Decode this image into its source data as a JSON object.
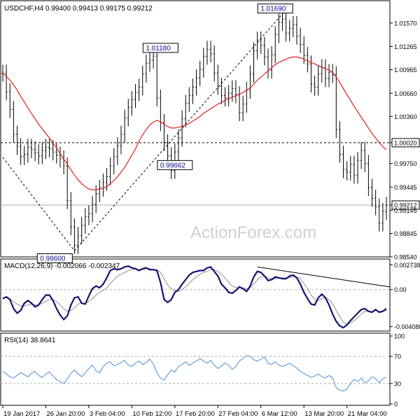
{
  "chart_data": [
    {
      "type": "line",
      "panel": "price",
      "title": "USDCHF,H4  0.99400 0.99413 0.99175 0.99212",
      "symbol": "USDCHF,H4",
      "ohlc_header": "0.99400 0.99413 0.99175 0.99212",
      "watermark": "ActionForex.com",
      "ylim": [
        0.9855,
        1.0185
      ],
      "y_ticks": [
        "1.01570",
        "1.01265",
        "1.00965",
        "1.00660",
        "1.00360",
        "1.00020",
        "0.99750",
        "0.99445",
        "0.99212",
        "0.99145",
        "0.98845",
        "0.98540"
      ],
      "last_price": "0.99212",
      "horizontal_lines": [
        {
          "value": 1.0002,
          "label": "1.00020",
          "style": "dashed"
        }
      ],
      "annotations": [
        {
          "label": "1.01690",
          "x": 76,
          "y": 1.0169
        },
        {
          "label": "1.01180",
          "x": 44,
          "y": 1.0118
        },
        {
          "label": "0.99662",
          "x": 48,
          "y": 0.99662
        },
        {
          "label": "0.98600",
          "x": 19,
          "y": 0.986
        }
      ],
      "trend_lines": [
        {
          "from": [
            0,
            0.9983
          ],
          "to": [
            20,
            0.9862
          ],
          "style": "dashed"
        },
        {
          "from": [
            20,
            0.9862
          ],
          "to": [
            79,
            1.0174
          ],
          "style": "dashed"
        }
      ],
      "series": [
        {
          "name": "",
          "color": "#000000",
          "values": [
            1.0092,
            1.0068,
            1.0045,
            1.0013,
            0.9997,
            0.9984,
            0.9987,
            0.9996,
            0.9993,
            0.9989,
            0.9985,
            0.9992,
            0.9996,
            0.9994,
            0.999,
            0.9986,
            0.9981,
            0.9972,
            0.9927,
            0.9893,
            0.9869,
            0.9882,
            0.9895,
            0.9906,
            0.991,
            0.9922,
            0.9936,
            0.9943,
            0.9951,
            0.9958,
            0.9972,
            0.9984,
            0.9998,
            1.0013,
            1.0034,
            1.0048,
            1.0058,
            1.0067,
            1.0074,
            1.0091,
            1.0105,
            1.0109,
            1.0114,
            1.006,
            1.0028,
            1.0002,
            0.9985,
            0.9966,
            0.999,
            1.0008,
            1.0033,
            1.0053,
            1.0063,
            1.0074,
            1.0086,
            1.0097,
            1.0114,
            1.0123,
            1.0117,
            1.0092,
            1.0075,
            1.0063,
            1.006,
            1.0066,
            1.0072,
            1.0064,
            1.0041,
            1.0052,
            1.007,
            1.0091,
            1.0121,
            1.0135,
            1.0128,
            1.0113,
            1.0096,
            1.0116,
            1.0142,
            1.0158,
            1.0162,
            1.0144,
            1.015,
            1.0155,
            1.014,
            1.0129,
            1.0115,
            1.0104,
            1.0078,
            1.0074,
            1.0091,
            1.0099,
            1.0085,
            1.0093,
            1.009,
            1.0019,
            0.9987,
            0.9967,
            0.9964,
            0.9974,
            0.996,
            0.9979,
            0.9992,
            0.9975,
            0.9944,
            0.993,
            0.9919,
            0.9898,
            0.9913,
            0.9921
          ]
        },
        {
          "name": "",
          "color": "#e02020",
          "values": [
            1.0092,
            1.0088,
            1.0083,
            1.0077,
            1.007,
            1.0062,
            1.0055,
            1.0047,
            1.004,
            1.0033,
            1.0026,
            1.002,
            1.0014,
            1.0008,
            1.0002,
            0.9995,
            0.9988,
            0.9981,
            0.9974,
            0.9967,
            0.996,
            0.9954,
            0.9949,
            0.9945,
            0.9942,
            0.9941,
            0.9941,
            0.9942,
            0.9943,
            0.9945,
            0.9949,
            0.9953,
            0.9958,
            0.9964,
            0.997,
            0.9978,
            0.9986,
            0.9994,
            1.0004,
            1.0012,
            1.0019,
            1.0025,
            1.0029,
            1.0031,
            1.0029,
            1.0026,
            1.0023,
            1.0021,
            1.0021,
            1.0022,
            1.0023,
            1.0025,
            1.0027,
            1.003,
            1.0033,
            1.0036,
            1.004,
            1.0043,
            1.0046,
            1.0049,
            1.0052,
            1.0054,
            1.0057,
            1.0059,
            1.0061,
            1.0063,
            1.0065,
            1.0067,
            1.007,
            1.0073,
            1.0078,
            1.0083,
            1.0087,
            1.0091,
            1.0095,
            1.0099,
            1.0103,
            1.0106,
            1.0108,
            1.011,
            1.0112,
            1.0113,
            1.0113,
            1.0112,
            1.011,
            1.0108,
            1.0106,
            1.0104,
            1.0102,
            1.01,
            1.0098,
            1.0096,
            1.0093,
            1.0087,
            1.008,
            1.0072,
            1.0064,
            1.0057,
            1.0049,
            1.0042,
            1.0035,
            1.0028,
            1.0021,
            1.0014,
            1.0008,
            1.0002,
            0.9997,
            0.9993
          ]
        }
      ],
      "x_tick_labels": [
        "19 Jan 2017",
        "26 Jan 20:00",
        "3 Feb 04:00",
        "10 Feb 12:00",
        "17 Feb 20:00",
        "27 Feb 04:00",
        "6 Mar 12:00",
        "13 Mar 20:00",
        "21 Mar 04:00"
      ],
      "x_tick_index": [
        0,
        12,
        24,
        36,
        48,
        60,
        72,
        84,
        96
      ]
    },
    {
      "type": "line",
      "panel": "macd",
      "title": "MACD(12,26,9) -0.002066 -0.002347",
      "ylim": [
        -0.0045,
        0.0033
      ],
      "y_ticks": [
        {
          "value": 0.002738,
          "label": "0.002738"
        },
        {
          "value": 0.0,
          "label": "0.00"
        },
        {
          "value": -0.004088,
          "label": "-0.004088"
        }
      ],
      "zero_line": true,
      "trend_lines": [
        {
          "from": [
            71,
            0.0025
          ],
          "to": [
            108,
            0.0003
          ]
        }
      ],
      "series": [
        {
          "name": "",
          "color": "#14146e",
          "values": [
            -0.001,
            -0.0008,
            -0.0011,
            -0.0021,
            -0.0026,
            -0.0023,
            -0.0015,
            -0.0012,
            -0.0015,
            -0.0019,
            -0.0017,
            -0.0011,
            -0.0006,
            -0.0006,
            -0.0012,
            -0.0021,
            -0.0028,
            -0.0033,
            -0.0029,
            -0.0017,
            -0.0009,
            -0.0008,
            -0.0015,
            -0.0016,
            -0.0007,
            0.0001,
            0.0004,
            0.0002,
            0.0006,
            0.0013,
            0.0021,
            0.0023,
            0.0022,
            0.0023,
            0.0025,
            0.0026,
            0.0024,
            0.0023,
            0.0021,
            0.0023,
            0.0024,
            0.0022,
            0.0022,
            0.0021,
            0.0008,
            -0.0011,
            -0.0014,
            -0.0011,
            -0.0003,
            -0.0,
            0.0006,
            0.0011,
            0.0016,
            0.0019,
            0.002,
            0.0021,
            0.0021,
            0.0024,
            0.0025,
            0.002,
            0.0015,
            0.0006,
            0.0002,
            -0.0003,
            -0.0004,
            -0.0001,
            0.0003,
            0.0001,
            -0.0002,
            0.0004,
            0.0014,
            0.002,
            0.0019,
            0.0015,
            0.001,
            0.0011,
            0.0014,
            0.0013,
            0.0012,
            0.0012,
            0.0015,
            0.0016,
            0.0013,
            0.0006,
            -0.0003,
            -0.001,
            -0.0016,
            -0.0017,
            -0.0009,
            -0.0005,
            -0.0009,
            -0.0017,
            -0.0027,
            -0.0035,
            -0.004,
            -0.0042,
            -0.0039,
            -0.0034,
            -0.003,
            -0.0026,
            -0.0022,
            -0.0021,
            -0.0024,
            -0.0025,
            -0.0022,
            -0.0025,
            -0.0024,
            -0.0021
          ]
        },
        {
          "name": "",
          "color": "#909090",
          "values": [
            -0.0009,
            -0.0009,
            -0.001,
            -0.0013,
            -0.0016,
            -0.0018,
            -0.0018,
            -0.0017,
            -0.0016,
            -0.0017,
            -0.0017,
            -0.0015,
            -0.0013,
            -0.0011,
            -0.0011,
            -0.0013,
            -0.0017,
            -0.0021,
            -0.0024,
            -0.0023,
            -0.002,
            -0.0016,
            -0.0015,
            -0.0015,
            -0.0013,
            -0.001,
            -0.0006,
            -0.0003,
            -0.0001,
            0.0002,
            0.0007,
            0.0011,
            0.0015,
            0.0017,
            0.0019,
            0.0021,
            0.0022,
            0.0023,
            0.0022,
            0.0022,
            0.0023,
            0.0023,
            0.0022,
            0.0022,
            0.0019,
            0.0012,
            0.0005,
            0.0001,
            -0.0001,
            -0.0002,
            0.0,
            0.0003,
            0.0007,
            0.0011,
            0.0014,
            0.0017,
            0.0019,
            0.002,
            0.0022,
            0.0022,
            0.002,
            0.0017,
            0.0013,
            0.0008,
            0.0004,
            0.0002,
            0.0002,
            0.0002,
            0.0001,
            0.0002,
            0.0006,
            0.0011,
            0.0014,
            0.0015,
            0.0013,
            0.0012,
            0.0012,
            0.0013,
            0.0013,
            0.0013,
            0.0013,
            0.0014,
            0.0014,
            0.0012,
            0.0007,
            0.0001,
            -0.0006,
            -0.0011,
            -0.0012,
            -0.001,
            -0.0009,
            -0.0011,
            -0.0016,
            -0.0023,
            -0.003,
            -0.0036,
            -0.0038,
            -0.0037,
            -0.0034,
            -0.0031,
            -0.0027,
            -0.0024,
            -0.0024,
            -0.0024,
            -0.0023,
            -0.0024,
            -0.0024,
            -0.0023
          ]
        }
      ]
    },
    {
      "type": "line",
      "panel": "rsi",
      "title": "RSI(14) 38.8641",
      "ylim": [
        0,
        100
      ],
      "y_ticks": [
        100,
        70,
        30,
        0
      ],
      "levels": [
        70,
        30
      ],
      "series": [
        {
          "name": "",
          "color": "#4c8fd6",
          "values": [
            48,
            44,
            40,
            38,
            42,
            46,
            43,
            40,
            45,
            48,
            42,
            39,
            44,
            47,
            41,
            36,
            33,
            30,
            37,
            45,
            50,
            44,
            40,
            46,
            52,
            57,
            49,
            46,
            55,
            60,
            62,
            56,
            58,
            61,
            64,
            57,
            55,
            60,
            63,
            58,
            61,
            66,
            59,
            46,
            38,
            35,
            43,
            50,
            47,
            55,
            58,
            62,
            57,
            60,
            63,
            67,
            63,
            60,
            64,
            57,
            52,
            56,
            60,
            57,
            51,
            55,
            63,
            67,
            71,
            70,
            65,
            63,
            66,
            69,
            60,
            58,
            62,
            57,
            55,
            57,
            60,
            56,
            53,
            48,
            45,
            42,
            39,
            41,
            44,
            40,
            38,
            42,
            38,
            24,
            20,
            19,
            22,
            30,
            36,
            33,
            38,
            31,
            34,
            40,
            37,
            31,
            37,
            39
          ]
        }
      ]
    }
  ]
}
